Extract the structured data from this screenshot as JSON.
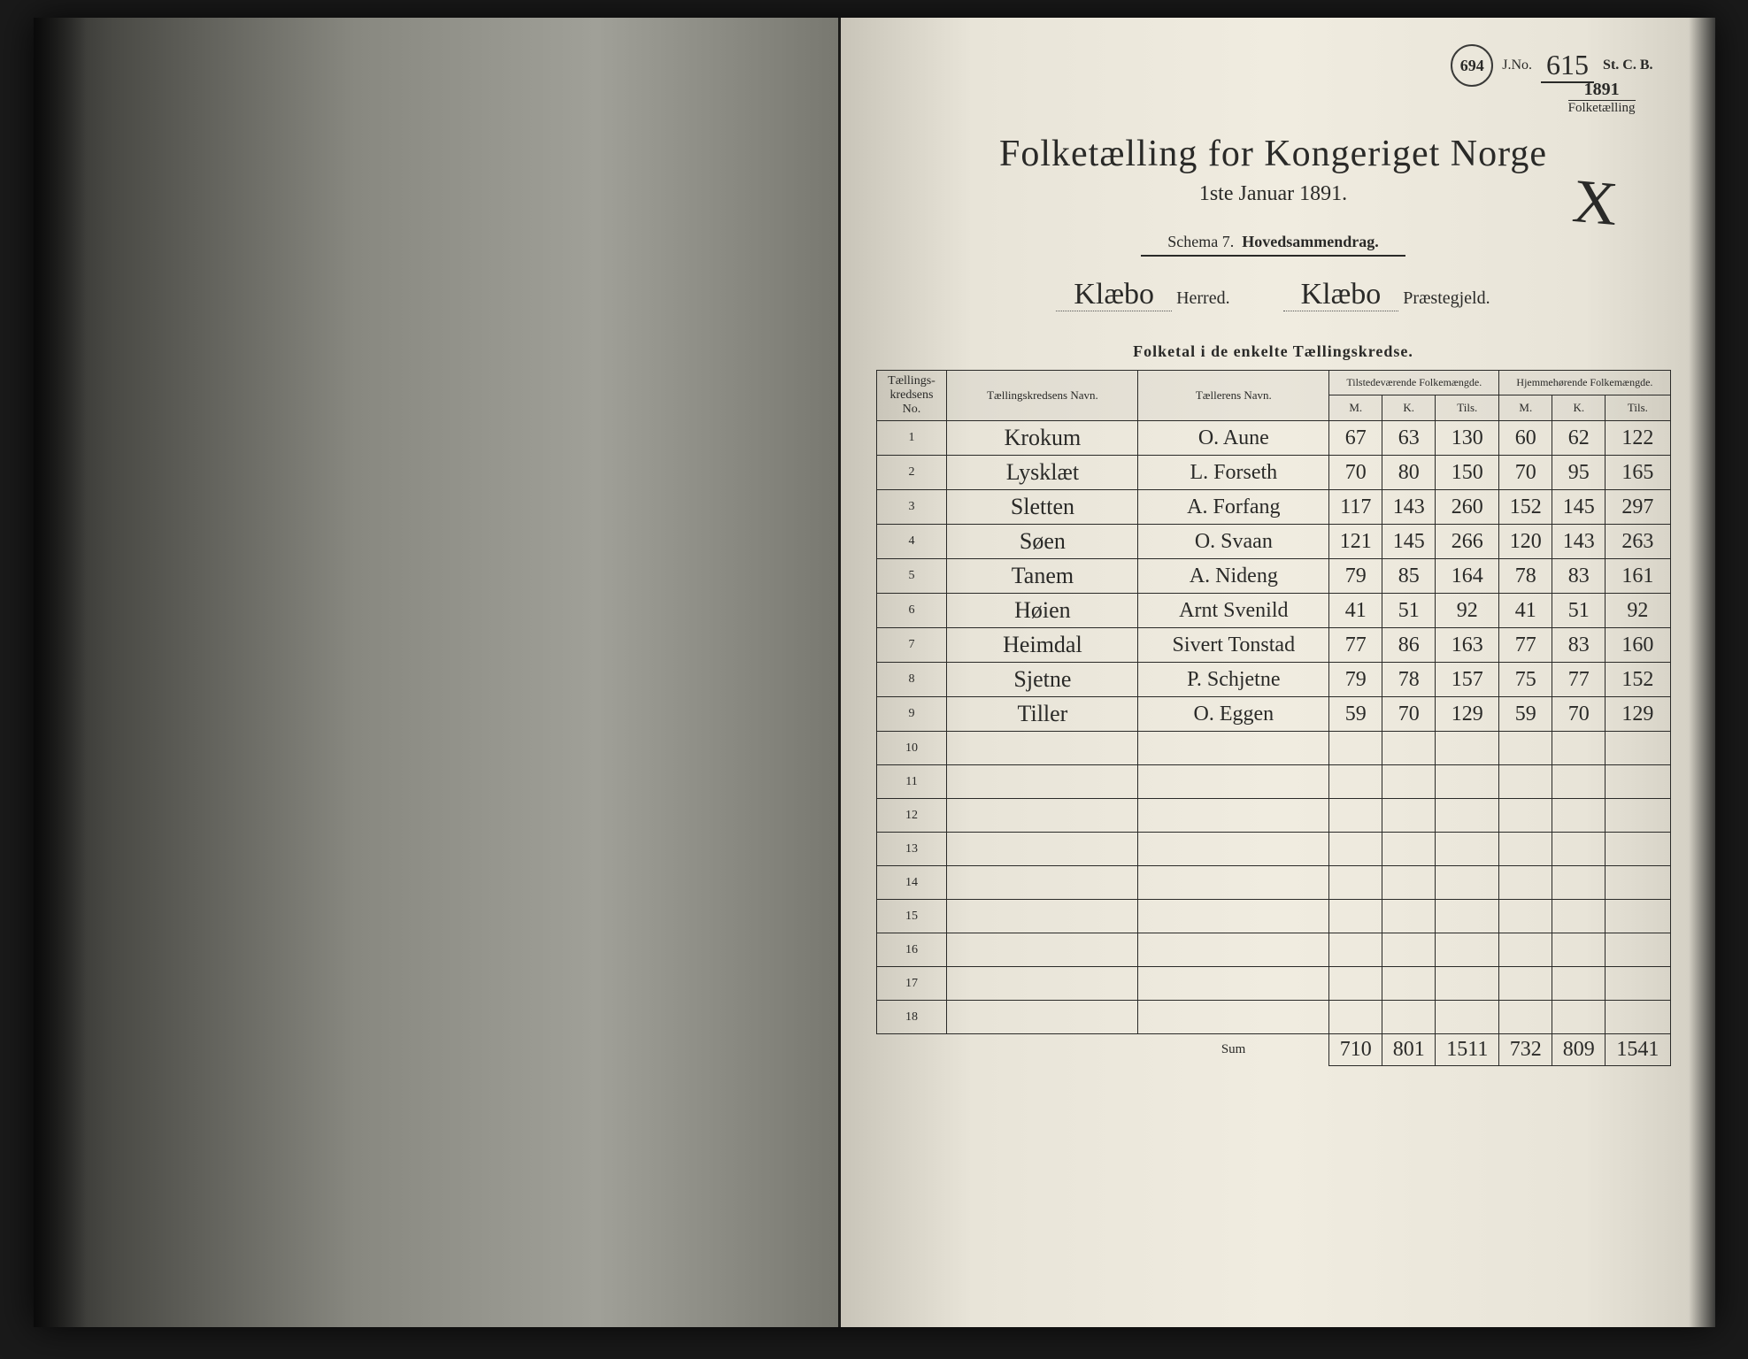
{
  "stamps": {
    "circle": "694",
    "jno_label": "J.No.",
    "jno_value": "615",
    "stcb": "St. C. B.",
    "year": "1891",
    "year_label": "Folketælling"
  },
  "header": {
    "title": "Folketælling for Kongeriget Norge",
    "subtitle": "1ste Januar 1891.",
    "schema": "Schema 7.",
    "schema_label": "Hovedsammendrag.",
    "herred_value": "Klæbo",
    "herred_label": "Herred.",
    "praestegjeld_value": "Klæbo",
    "praestegjeld_label": "Præstegjeld.",
    "cross": "X"
  },
  "table": {
    "title": "Folketal i de enkelte Tællingskredse.",
    "headers": {
      "no": "Tællings-\nkredsens No.",
      "kreds_navn": "Tællingskredsens Navn.",
      "taeller_navn": "Tællerens Navn.",
      "tilstede": "Tilstedeværende\nFolkemængde.",
      "hjemme": "Hjemmehørende\nFolkemængde.",
      "m": "M.",
      "k": "K.",
      "tils": "Tils."
    },
    "rows": [
      {
        "n": "1",
        "kreds": "Krokum",
        "taeller": "O. Aune",
        "tm": "67",
        "tk": "63",
        "tt": "130",
        "hm": "60",
        "hk": "62",
        "ht": "122"
      },
      {
        "n": "2",
        "kreds": "Lysklæt",
        "taeller": "L. Forseth",
        "tm": "70",
        "tk": "80",
        "tt": "150",
        "hm": "70",
        "hk": "95",
        "ht": "165"
      },
      {
        "n": "3",
        "kreds": "Sletten",
        "taeller": "A. Forfang",
        "tm": "117",
        "tk": "143",
        "tt": "260",
        "hm": "152",
        "hk": "145",
        "ht": "297"
      },
      {
        "n": "4",
        "kreds": "Søen",
        "taeller": "O. Svaan",
        "tm": "121",
        "tk": "145",
        "tt": "266",
        "hm": "120",
        "hk": "143",
        "ht": "263"
      },
      {
        "n": "5",
        "kreds": "Tanem",
        "taeller": "A. Nideng",
        "tm": "79",
        "tk": "85",
        "tt": "164",
        "hm": "78",
        "hk": "83",
        "ht": "161"
      },
      {
        "n": "6",
        "kreds": "Høien",
        "taeller": "Arnt Svenild",
        "tm": "41",
        "tk": "51",
        "tt": "92",
        "hm": "41",
        "hk": "51",
        "ht": "92"
      },
      {
        "n": "7",
        "kreds": "Heimdal",
        "taeller": "Sivert Tonstad",
        "tm": "77",
        "tk": "86",
        "tt": "163",
        "hm": "77",
        "hk": "83",
        "ht": "160"
      },
      {
        "n": "8",
        "kreds": "Sjetne",
        "taeller": "P. Schjetne",
        "tm": "79",
        "tk": "78",
        "tt": "157",
        "hm": "75",
        "hk": "77",
        "ht": "152"
      },
      {
        "n": "9",
        "kreds": "Tiller",
        "taeller": "O. Eggen",
        "tm": "59",
        "tk": "70",
        "tt": "129",
        "hm": "59",
        "hk": "70",
        "ht": "129"
      }
    ],
    "empty_rows": [
      "10",
      "11",
      "12",
      "13",
      "14",
      "15",
      "16",
      "17",
      "18"
    ],
    "sum": {
      "label": "Sum",
      "tm": "710",
      "tk": "801",
      "tt": "1511",
      "hm": "732",
      "hk": "809",
      "ht": "1541"
    }
  },
  "colors": {
    "paper": "#e8e4d8",
    "ink": "#2a2a28",
    "dark": "#1a1a1a"
  }
}
